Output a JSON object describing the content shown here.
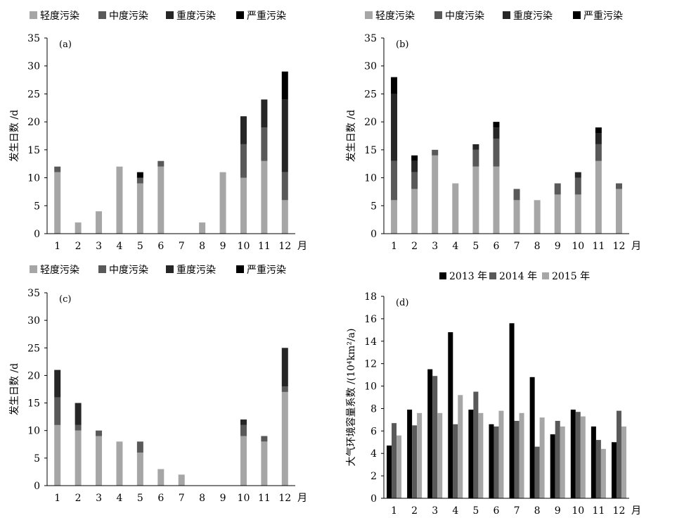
{
  "chart_data": [
    {
      "id": "a",
      "type": "bar",
      "stacked": true,
      "panel_label": "(a)",
      "ylabel": "发生日数 /d",
      "x_unit": "月",
      "categories": [
        "1",
        "2",
        "3",
        "4",
        "5",
        "6",
        "7",
        "8",
        "9",
        "10",
        "11",
        "12"
      ],
      "ylim": [
        0,
        35
      ],
      "yticks": [
        0,
        5,
        10,
        15,
        20,
        25,
        30,
        35
      ],
      "grid": false,
      "legend_position": "top",
      "series": [
        {
          "name": "轻度污染",
          "color": "#a6a6a6",
          "values": [
            11,
            2,
            4,
            12,
            9,
            12,
            0,
            2,
            11,
            10,
            13,
            6
          ]
        },
        {
          "name": "中度污染",
          "color": "#595959",
          "values": [
            1,
            0,
            0,
            0,
            1,
            1,
            0,
            0,
            0,
            6,
            6,
            5
          ]
        },
        {
          "name": "重度污染",
          "color": "#262626",
          "values": [
            0,
            0,
            0,
            0,
            0,
            0,
            0,
            0,
            0,
            5,
            5,
            13
          ]
        },
        {
          "name": "严重污染",
          "color": "#000000",
          "values": [
            0,
            0,
            0,
            0,
            1,
            0,
            0,
            0,
            0,
            0,
            0,
            5
          ]
        }
      ]
    },
    {
      "id": "b",
      "type": "bar",
      "stacked": true,
      "panel_label": "(b)",
      "ylabel": "发生日数 /d",
      "x_unit": "月",
      "categories": [
        "1",
        "2",
        "3",
        "4",
        "5",
        "6",
        "7",
        "8",
        "9",
        "10",
        "11",
        "12"
      ],
      "ylim": [
        0,
        35
      ],
      "yticks": [
        0,
        5,
        10,
        15,
        20,
        25,
        30,
        35
      ],
      "grid": false,
      "legend_position": "top",
      "series": [
        {
          "name": "轻度污染",
          "color": "#a6a6a6",
          "values": [
            6,
            8,
            14,
            9,
            12,
            12,
            6,
            6,
            7,
            7,
            13,
            8
          ]
        },
        {
          "name": "中度污染",
          "color": "#595959",
          "values": [
            7,
            3,
            1,
            0,
            3,
            5,
            2,
            0,
            2,
            3,
            3,
            1
          ]
        },
        {
          "name": "重度污染",
          "color": "#262626",
          "values": [
            12,
            2,
            0,
            0,
            1,
            2,
            0,
            0,
            0,
            1,
            2,
            0
          ]
        },
        {
          "name": "严重污染",
          "color": "#000000",
          "values": [
            3,
            1,
            0,
            0,
            0,
            1,
            0,
            0,
            0,
            0,
            1,
            0
          ]
        }
      ]
    },
    {
      "id": "c",
      "type": "bar",
      "stacked": true,
      "panel_label": "(c)",
      "ylabel": "发生日数 /d",
      "x_unit": "月",
      "categories": [
        "1",
        "2",
        "3",
        "4",
        "5",
        "6",
        "7",
        "8",
        "9",
        "10",
        "11",
        "12"
      ],
      "ylim": [
        0,
        35
      ],
      "yticks": [
        0,
        5,
        10,
        15,
        20,
        25,
        30,
        35
      ],
      "grid": false,
      "legend_position": "top",
      "series": [
        {
          "name": "轻度污染",
          "color": "#a6a6a6",
          "values": [
            11,
            10,
            9,
            8,
            6,
            3,
            2,
            0,
            0,
            9,
            8,
            17
          ]
        },
        {
          "name": "中度污染",
          "color": "#595959",
          "values": [
            5,
            1,
            1,
            0,
            2,
            0,
            0,
            0,
            0,
            2,
            1,
            1
          ]
        },
        {
          "name": "重度污染",
          "color": "#262626",
          "values": [
            5,
            4,
            0,
            0,
            0,
            0,
            0,
            0,
            0,
            1,
            0,
            7
          ]
        },
        {
          "name": "严重污染",
          "color": "#000000",
          "values": [
            0,
            0,
            0,
            0,
            0,
            0,
            0,
            0,
            0,
            0,
            0,
            0
          ]
        }
      ]
    },
    {
      "id": "d",
      "type": "bar",
      "stacked": false,
      "panel_label": "(d)",
      "ylabel": "大气环境容量系数 /(10⁴km²/a)",
      "x_unit": "月",
      "categories": [
        "1",
        "2",
        "3",
        "4",
        "5",
        "6",
        "7",
        "8",
        "9",
        "10",
        "11",
        "12"
      ],
      "ylim": [
        0,
        18
      ],
      "yticks": [
        0,
        2,
        4,
        6,
        8,
        10,
        12,
        14,
        16,
        18
      ],
      "grid": false,
      "legend_position": "top",
      "series": [
        {
          "name": "2013 年",
          "color": "#000000",
          "values": [
            4.7,
            7.9,
            11.5,
            14.8,
            7.9,
            6.6,
            15.6,
            10.8,
            5.7,
            7.9,
            6.4,
            5.0
          ]
        },
        {
          "name": "2014 年",
          "color": "#595959",
          "values": [
            6.7,
            6.5,
            10.9,
            6.6,
            9.5,
            6.4,
            6.9,
            4.6,
            6.9,
            7.7,
            5.2,
            7.8
          ]
        },
        {
          "name": "2015 年",
          "color": "#a6a6a6",
          "values": [
            5.6,
            7.6,
            7.6,
            9.2,
            7.6,
            7.8,
            7.6,
            7.2,
            6.4,
            7.3,
            4.4,
            6.4
          ]
        }
      ]
    }
  ]
}
